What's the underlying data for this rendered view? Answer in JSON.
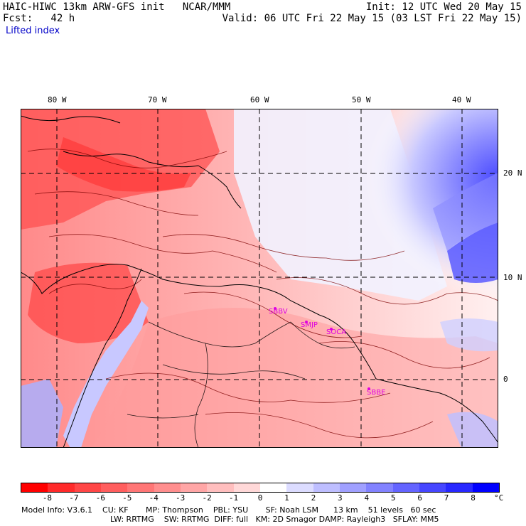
{
  "header": {
    "model": "HAIC-HIWC 13km ARW-GFS init   NCAR/MMM",
    "init": "Init: 12 UTC Wed 20 May 15",
    "fcst": "Fcst:   42 h",
    "valid": "Valid: 06 UTC Fri 22 May 15 (03 LST Fri 22 May 15)",
    "field": "Lifted index"
  },
  "lon_labels": [
    "80 W",
    "70 W",
    "60 W",
    "50 W",
    "40 W"
  ],
  "lat_labels": [
    "20 N",
    "10 N",
    "0"
  ],
  "stations": [
    "SBBV",
    "SMJP",
    "SOCA",
    "SBBE"
  ],
  "legend": {
    "ticks": [
      "-8",
      "-7",
      "-6",
      "-5",
      "-4",
      "-3",
      "-2",
      "-1",
      "0",
      "1",
      "2",
      "3",
      "4",
      "5",
      "6",
      "7",
      "8"
    ],
    "unit": "°C",
    "colors": [
      "#ff0000",
      "#ff2a2a",
      "#ff4646",
      "#ff5e5e",
      "#ff7676",
      "#ff8e8e",
      "#ffa6a6",
      "#ffbebe",
      "#ffd8d8",
      "#ffffff",
      "#dcdcff",
      "#bebeff",
      "#a0a0ff",
      "#8282ff",
      "#6464ff",
      "#4646ff",
      "#2828ff",
      "#0000ff"
    ]
  },
  "footer": {
    "line1": "Model Info: V3.6.1    CU: KF       MP: Thompson    PBL: YSU       SF: Noah LSM      13 km    51 levels   60 sec",
    "line2": "LW: RRTMG    SW: RRTMG  DIFF: full   KM: 2D Smagor DAMP: Rayleigh3   SFLAY: MM5"
  }
}
